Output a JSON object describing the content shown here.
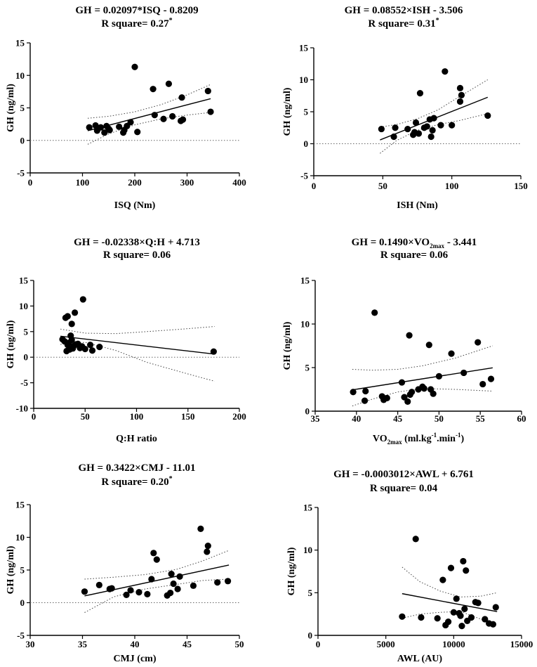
{
  "chart_data": [
    {
      "type": "scatter",
      "title": "GH = 0.02097*ISQ - 0.8209",
      "r2_label": "R square= 0.27",
      "r2_star": "*",
      "xlabel": "ISQ (Nm)",
      "ylabel": "GH (ng/ml)",
      "xlim": [
        0,
        400
      ],
      "ylim": [
        -5,
        15
      ],
      "xticks": [
        0,
        100,
        200,
        300,
        400
      ],
      "yticks": [
        -5,
        0,
        5,
        10,
        15
      ],
      "fit": {
        "slope": 0.02097,
        "intercept": -0.8209,
        "xrange": [
          110,
          345
        ]
      },
      "ci_upper": [
        [
          110,
          3.4
        ],
        [
          150,
          3.7
        ],
        [
          200,
          4.4
        ],
        [
          250,
          5.5
        ],
        [
          300,
          7.0
        ],
        [
          345,
          8.6
        ]
      ],
      "ci_lower": [
        [
          110,
          -0.6
        ],
        [
          150,
          1.0
        ],
        [
          200,
          2.4
        ],
        [
          250,
          3.3
        ],
        [
          300,
          3.9
        ],
        [
          345,
          4.3
        ]
      ],
      "points": [
        [
          113,
          2.0
        ],
        [
          125,
          2.3
        ],
        [
          128,
          1.5
        ],
        [
          135,
          2.0
        ],
        [
          142,
          1.2
        ],
        [
          146,
          2.2
        ],
        [
          150,
          1.8
        ],
        [
          152,
          1.6
        ],
        [
          170,
          2.1
        ],
        [
          178,
          1.2
        ],
        [
          180,
          1.6
        ],
        [
          185,
          2.2
        ],
        [
          192,
          2.8
        ],
        [
          200,
          11.3
        ],
        [
          205,
          1.3
        ],
        [
          235,
          7.9
        ],
        [
          238,
          3.9
        ],
        [
          255,
          3.3
        ],
        [
          265,
          8.7
        ],
        [
          272,
          3.7
        ],
        [
          288,
          3.0
        ],
        [
          290,
          6.6
        ],
        [
          292,
          3.2
        ],
        [
          340,
          7.6
        ],
        [
          345,
          4.4
        ]
      ]
    },
    {
      "type": "scatter",
      "title": "GH = 0.08552×ISH - 3.506",
      "r2_label": "R square= 0.31",
      "r2_star": "*",
      "xlabel": "ISH (Nm)",
      "ylabel": "GH (ng/ml)",
      "xlim": [
        0,
        150
      ],
      "ylim": [
        -5,
        15
      ],
      "xticks": [
        0,
        50,
        100,
        150
      ],
      "yticks": [
        -5,
        0,
        5,
        10,
        15
      ],
      "fit": {
        "slope": 0.08552,
        "intercept": -3.506,
        "xrange": [
          48,
          126
        ]
      },
      "ci_upper": [
        [
          48,
          2.6
        ],
        [
          60,
          3.0
        ],
        [
          75,
          3.9
        ],
        [
          90,
          5.3
        ],
        [
          105,
          7.3
        ],
        [
          126,
          10.0
        ]
      ],
      "ci_lower": [
        [
          48,
          -1.5
        ],
        [
          60,
          0.5
        ],
        [
          75,
          2.1
        ],
        [
          90,
          3.0
        ],
        [
          105,
          3.6
        ],
        [
          126,
          4.7
        ]
      ],
      "points": [
        [
          49,
          2.3
        ],
        [
          58,
          1.1
        ],
        [
          59,
          2.5
        ],
        [
          68,
          2.3
        ],
        [
          72,
          1.4
        ],
        [
          73,
          1.8
        ],
        [
          74,
          3.3
        ],
        [
          76,
          1.6
        ],
        [
          77,
          7.9
        ],
        [
          80,
          2.5
        ],
        [
          82,
          2.7
        ],
        [
          84,
          3.8
        ],
        [
          85,
          1.1
        ],
        [
          86,
          2.1
        ],
        [
          87,
          4.0
        ],
        [
          92,
          2.9
        ],
        [
          95,
          11.3
        ],
        [
          100,
          2.9
        ],
        [
          106,
          8.7
        ],
        [
          106,
          6.6
        ],
        [
          107,
          7.6
        ],
        [
          126,
          4.4
        ]
      ]
    },
    {
      "type": "scatter",
      "title": "GH = -0.02338×Q:H + 4.713",
      "r2_label": "R square= 0.06",
      "r2_star": "",
      "xlabel": "Q:H ratio",
      "ylabel": "GH (ng/ml)",
      "xlim": [
        0,
        200
      ],
      "ylim": [
        -10,
        15
      ],
      "xticks": [
        0,
        50,
        100,
        150,
        200
      ],
      "yticks": [
        -10,
        -5,
        0,
        5,
        10,
        15
      ],
      "fit": {
        "slope": -0.02338,
        "intercept": 4.713,
        "xrange": [
          26,
          176
        ]
      },
      "ci_upper": [
        [
          26,
          5.5
        ],
        [
          50,
          4.7
        ],
        [
          80,
          4.6
        ],
        [
          110,
          5.0
        ],
        [
          145,
          5.5
        ],
        [
          176,
          6.0
        ]
      ],
      "ci_lower": [
        [
          26,
          2.5
        ],
        [
          50,
          2.9
        ],
        [
          80,
          1.3
        ],
        [
          110,
          -1.0
        ],
        [
          145,
          -3.0
        ],
        [
          176,
          -4.7
        ]
      ],
      "points": [
        [
          28,
          3.5
        ],
        [
          30,
          3.1
        ],
        [
          31,
          7.7
        ],
        [
          32,
          1.2
        ],
        [
          33,
          8.0
        ],
        [
          33,
          2.4
        ],
        [
          34,
          2.8
        ],
        [
          35,
          1.5
        ],
        [
          36,
          4.2
        ],
        [
          37,
          6.5
        ],
        [
          37,
          3.4
        ],
        [
          38,
          1.7
        ],
        [
          39,
          2.2
        ],
        [
          40,
          8.7
        ],
        [
          41,
          2.5
        ],
        [
          43,
          2.6
        ],
        [
          45,
          1.8
        ],
        [
          47,
          2.1
        ],
        [
          48,
          11.3
        ],
        [
          50,
          1.6
        ],
        [
          55,
          2.4
        ],
        [
          57,
          1.3
        ],
        [
          64,
          2.0
        ],
        [
          175,
          1.1
        ]
      ]
    },
    {
      "type": "scatter",
      "title": "GH = 0.1490×VO₂max - 3.441",
      "r2_label": "R square= 0.06",
      "r2_star": "",
      "xlabel": "VO2max (ml.kg-1.min-1)",
      "ylabel": "GH (ng/ml)",
      "xlim": [
        35,
        60
      ],
      "ylim": [
        0,
        15
      ],
      "xticks": [
        35,
        40,
        45,
        50,
        55,
        60
      ],
      "yticks": [
        0,
        5,
        10,
        15
      ],
      "fit": {
        "slope": 0.149,
        "intercept": -3.441,
        "xrange": [
          39.5,
          56.5
        ]
      },
      "ci_upper": [
        [
          39.5,
          4.8
        ],
        [
          42,
          4.7
        ],
        [
          45,
          4.8
        ],
        [
          48,
          5.2
        ],
        [
          52,
          6.1
        ],
        [
          56.5,
          7.5
        ]
      ],
      "ci_lower": [
        [
          39.5,
          0.6
        ],
        [
          42,
          1.4
        ],
        [
          45,
          2.2
        ],
        [
          48,
          2.6
        ],
        [
          52,
          2.5
        ],
        [
          56.5,
          2.3
        ]
      ],
      "points": [
        [
          39.6,
          2.2
        ],
        [
          41.0,
          1.2
        ],
        [
          41.1,
          2.3
        ],
        [
          42.2,
          11.3
        ],
        [
          43.1,
          1.7
        ],
        [
          43.3,
          1.3
        ],
        [
          43.7,
          1.5
        ],
        [
          45.5,
          3.3
        ],
        [
          45.8,
          1.6
        ],
        [
          46.2,
          1.1
        ],
        [
          46.4,
          8.7
        ],
        [
          46.5,
          1.9
        ],
        [
          46.7,
          2.2
        ],
        [
          47.5,
          2.5
        ],
        [
          48.0,
          2.8
        ],
        [
          48.2,
          2.6
        ],
        [
          48.8,
          7.6
        ],
        [
          49.0,
          2.5
        ],
        [
          49.3,
          2.0
        ],
        [
          50.0,
          4.0
        ],
        [
          51.5,
          6.6
        ],
        [
          53.0,
          4.4
        ],
        [
          54.7,
          7.9
        ],
        [
          55.3,
          3.1
        ],
        [
          56.3,
          3.7
        ]
      ]
    },
    {
      "type": "scatter",
      "title": "GH = 0.3422×CMJ - 11.01",
      "r2_label": "R square= 0.20",
      "r2_star": "*",
      "xlabel": "CMJ  (cm)",
      "ylabel": "GH (ng/ml)",
      "xlim": [
        30,
        50
      ],
      "ylim": [
        -5,
        15
      ],
      "xticks": [
        30,
        35,
        40,
        45,
        50
      ],
      "yticks": [
        -5,
        0,
        5,
        10,
        15
      ],
      "fit": {
        "slope": 0.3422,
        "intercept": -11.01,
        "xrange": [
          35.2,
          49.0
        ]
      },
      "ci_upper": [
        [
          35.2,
          3.6
        ],
        [
          38,
          3.9
        ],
        [
          41,
          4.3
        ],
        [
          44,
          5.1
        ],
        [
          46.5,
          6.4
        ],
        [
          49,
          8.0
        ]
      ],
      "ci_lower": [
        [
          35.2,
          -1.5
        ],
        [
          38,
          0.9
        ],
        [
          41,
          2.1
        ],
        [
          44,
          2.8
        ],
        [
          46.5,
          3.4
        ],
        [
          49,
          3.6
        ]
      ],
      "points": [
        [
          35.2,
          1.7
        ],
        [
          36.6,
          2.7
        ],
        [
          37.6,
          2.1
        ],
        [
          37.8,
          2.2
        ],
        [
          39.2,
          1.2
        ],
        [
          39.6,
          1.9
        ],
        [
          40.4,
          1.6
        ],
        [
          41.2,
          1.3
        ],
        [
          41.6,
          3.6
        ],
        [
          41.8,
          7.6
        ],
        [
          42.1,
          6.6
        ],
        [
          43.1,
          1.1
        ],
        [
          43.4,
          1.5
        ],
        [
          43.5,
          4.4
        ],
        [
          43.7,
          2.9
        ],
        [
          44.1,
          2.1
        ],
        [
          44.3,
          4.0
        ],
        [
          45.6,
          2.6
        ],
        [
          46.3,
          11.3
        ],
        [
          46.9,
          7.8
        ],
        [
          47.0,
          8.7
        ],
        [
          47.9,
          3.1
        ],
        [
          48.9,
          3.3
        ]
      ]
    },
    {
      "type": "scatter",
      "title": "GH = -0.0003012×AWL + 6.761",
      "r2_label": "R square= 0.04",
      "r2_star": "",
      "xlabel": "AWL (AU)",
      "ylabel": "GH (ng/ml)",
      "xlim": [
        0,
        15000
      ],
      "ylim": [
        0,
        15
      ],
      "xticks": [
        0,
        5000,
        10000,
        15000
      ],
      "yticks": [
        0,
        5,
        10,
        15
      ],
      "fit": {
        "slope": -0.0003012,
        "intercept": 6.761,
        "xrange": [
          6200,
          13200
        ]
      },
      "ci_upper": [
        [
          6200,
          8.0
        ],
        [
          7500,
          6.3
        ],
        [
          9000,
          5.2
        ],
        [
          10500,
          4.5
        ],
        [
          12000,
          4.6
        ],
        [
          13200,
          5.0
        ]
      ],
      "ci_lower": [
        [
          6200,
          2.0
        ],
        [
          7500,
          2.5
        ],
        [
          9000,
          2.7
        ],
        [
          10500,
          2.8
        ],
        [
          12000,
          1.9
        ],
        [
          13200,
          1.2
        ]
      ],
      "points": [
        [
          6200,
          2.2
        ],
        [
          7200,
          11.3
        ],
        [
          7600,
          2.1
        ],
        [
          8800,
          2.0
        ],
        [
          9200,
          6.5
        ],
        [
          9400,
          1.2
        ],
        [
          9600,
          1.6
        ],
        [
          9800,
          7.9
        ],
        [
          10000,
          2.7
        ],
        [
          10200,
          4.3
        ],
        [
          10400,
          2.6
        ],
        [
          10500,
          2.3
        ],
        [
          10600,
          1.1
        ],
        [
          10700,
          8.7
        ],
        [
          10800,
          3.1
        ],
        [
          10900,
          7.6
        ],
        [
          11000,
          1.7
        ],
        [
          11300,
          2.1
        ],
        [
          11600,
          3.9
        ],
        [
          11800,
          3.8
        ],
        [
          12300,
          1.9
        ],
        [
          12600,
          1.4
        ],
        [
          12900,
          1.3
        ],
        [
          13100,
          3.3
        ]
      ]
    }
  ]
}
